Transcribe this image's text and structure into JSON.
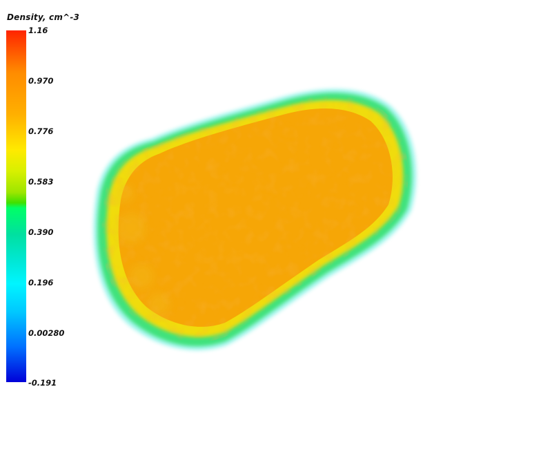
{
  "colorbar": {
    "title": "Density, cm^-3",
    "ticks": [
      "1.16",
      "0.970",
      "0.776",
      "0.583",
      "0.390",
      "0.196",
      "0.00280",
      "-0.191"
    ],
    "colors": {
      "max": "#ff2400",
      "high": "#ffb000",
      "mid_high": "#ffea00",
      "mid": "#40e000",
      "mid_low": "#00f5ff",
      "low": "#0070ff",
      "min": "#0000d8"
    }
  },
  "volume": {
    "description_colors": {
      "core": "#f5a000",
      "inner_rim": "#f2d800",
      "outer_rim": "#30e070",
      "halo": "#6ff0e0"
    }
  }
}
